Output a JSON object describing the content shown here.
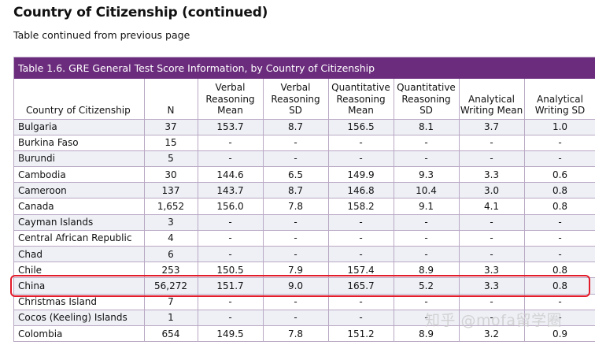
{
  "page": {
    "title": "Country of Citizenship (continued)",
    "subtitle": "Table continued from previous page"
  },
  "table": {
    "caption": "Table 1.6. GRE General Test Score Information, by Country of Citizenship",
    "headers": [
      "Country of Citizenship",
      "N",
      "Verbal Reasoning Mean",
      "Verbal Reasoning SD",
      "Quantitative Reasoning Mean",
      "Quantitative Reasoning SD",
      "Analytical Writing Mean",
      "Analytical Writing SD"
    ],
    "rows": [
      [
        "Bulgaria",
        "37",
        "153.7",
        "8.7",
        "156.5",
        "8.1",
        "3.7",
        "1.0"
      ],
      [
        "Burkina Faso",
        "15",
        "-",
        "-",
        "-",
        "-",
        "-",
        "-"
      ],
      [
        "Burundi",
        "5",
        "-",
        "-",
        "-",
        "-",
        "-",
        "-"
      ],
      [
        "Cambodia",
        "30",
        "144.6",
        "6.5",
        "149.9",
        "9.3",
        "3.3",
        "0.6"
      ],
      [
        "Cameroon",
        "137",
        "143.7",
        "8.7",
        "146.8",
        "10.4",
        "3.0",
        "0.8"
      ],
      [
        "Canada",
        "1,652",
        "156.0",
        "7.8",
        "158.2",
        "9.1",
        "4.1",
        "0.8"
      ],
      [
        "Cayman Islands",
        "3",
        "-",
        "-",
        "-",
        "-",
        "-",
        "-"
      ],
      [
        "Central African Republic",
        "4",
        "-",
        "-",
        "-",
        "-",
        "-",
        "-"
      ],
      [
        "Chad",
        "6",
        "-",
        "-",
        "-",
        "-",
        "-",
        "-"
      ],
      [
        "Chile",
        "253",
        "150.5",
        "7.9",
        "157.4",
        "8.9",
        "3.3",
        "0.8"
      ],
      [
        "China",
        "56,272",
        "151.7",
        "9.0",
        "165.7",
        "5.2",
        "3.3",
        "0.8"
      ],
      [
        "Christmas Island",
        "7",
        "-",
        "-",
        "-",
        "-",
        "-",
        "-"
      ],
      [
        "Cocos (Keeling) Islands",
        "1",
        "-",
        "-",
        "-",
        "-",
        "-",
        "-"
      ],
      [
        "Colombia",
        "654",
        "149.5",
        "7.8",
        "151.2",
        "8.9",
        "3.2",
        "0.9"
      ]
    ]
  },
  "annotation": {
    "highlighted_row": "China",
    "highlight_color": "#e21c2b"
  },
  "watermark": "知乎 @mofa留学圈",
  "colors": {
    "caption_bg": "#6b2c7d",
    "stripe": "#eef0f6",
    "grid": "#b9a8c4"
  }
}
